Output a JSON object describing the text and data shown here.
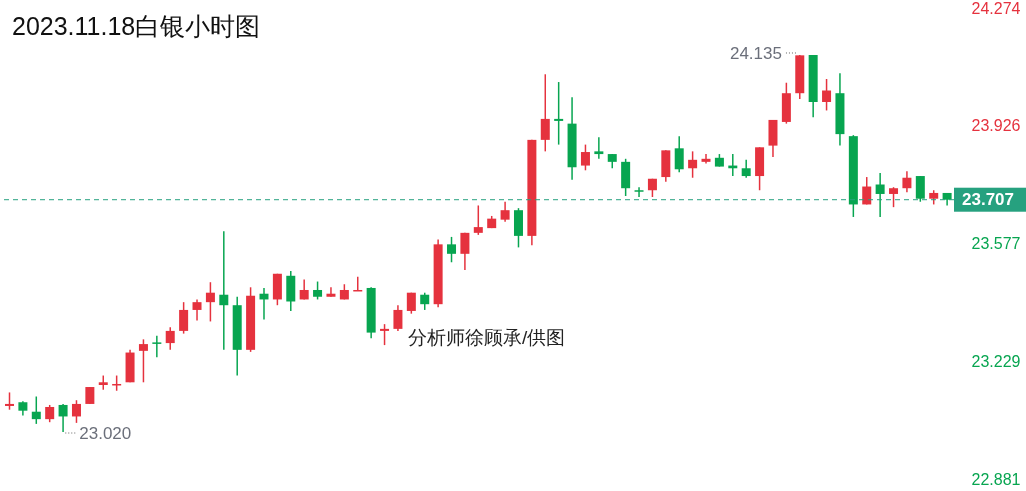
{
  "chart_data": {
    "type": "candlestick",
    "title": "2023.11.18白银小时图",
    "categories": [
      null,
      null,
      null,
      null,
      null,
      null,
      null,
      null,
      null,
      null,
      null,
      null,
      null,
      null,
      null,
      null,
      null,
      null,
      null,
      null,
      null,
      null,
      null,
      null,
      null,
      null,
      null,
      null,
      null,
      null,
      null,
      null,
      null,
      null,
      null,
      null,
      null,
      null,
      null,
      null,
      null,
      null,
      null,
      null,
      null,
      null,
      null,
      null,
      null,
      null,
      null,
      null,
      null,
      null,
      null,
      null,
      null,
      null,
      null,
      null,
      null,
      null,
      null,
      null,
      null,
      null,
      null,
      null,
      null,
      null,
      null
    ],
    "ohlc": [
      [
        23.097,
        23.137,
        23.086,
        23.103
      ],
      [
        23.108,
        23.111,
        23.069,
        23.083
      ],
      [
        23.08,
        23.125,
        23.044,
        23.058
      ],
      [
        23.058,
        23.1,
        23.049,
        23.094
      ],
      [
        23.1,
        23.103,
        23.02,
        23.066
      ],
      [
        23.066,
        23.114,
        23.047,
        23.103
      ],
      [
        23.103,
        23.153,
        23.103,
        23.153
      ],
      [
        23.159,
        23.187,
        23.145,
        23.167
      ],
      [
        23.159,
        23.187,
        23.142,
        23.162
      ],
      [
        23.167,
        23.263,
        23.167,
        23.255
      ],
      [
        23.26,
        23.294,
        23.167,
        23.28
      ],
      [
        23.285,
        23.305,
        23.241,
        23.283
      ],
      [
        23.283,
        23.33,
        23.263,
        23.319
      ],
      [
        23.319,
        23.404,
        23.311,
        23.381
      ],
      [
        23.381,
        23.412,
        23.35,
        23.404
      ],
      [
        23.404,
        23.463,
        23.347,
        23.432
      ],
      [
        23.426,
        23.614,
        23.263,
        23.395
      ],
      [
        23.395,
        23.42,
        23.187,
        23.263
      ],
      [
        23.263,
        23.448,
        23.257,
        23.423
      ],
      [
        23.429,
        23.446,
        23.353,
        23.412
      ],
      [
        23.412,
        23.488,
        23.395,
        23.488
      ],
      [
        23.482,
        23.496,
        23.378,
        23.406
      ],
      [
        23.412,
        23.471,
        23.412,
        23.44
      ],
      [
        23.44,
        23.465,
        23.412,
        23.42
      ],
      [
        23.42,
        23.448,
        23.42,
        23.429
      ],
      [
        23.412,
        23.457,
        23.412,
        23.44
      ],
      [
        23.437,
        23.479,
        23.437,
        23.44
      ],
      [
        23.446,
        23.448,
        23.297,
        23.314
      ],
      [
        23.319,
        23.339,
        23.277,
        23.325
      ],
      [
        23.325,
        23.395,
        23.319,
        23.381
      ],
      [
        23.378,
        23.432,
        23.37,
        23.432
      ],
      [
        23.426,
        23.432,
        23.381,
        23.398
      ],
      [
        23.398,
        23.589,
        23.389,
        23.575
      ],
      [
        23.575,
        23.597,
        23.522,
        23.547
      ],
      [
        23.547,
        23.609,
        23.499,
        23.609
      ],
      [
        23.609,
        23.69,
        23.603,
        23.626
      ],
      [
        23.623,
        23.659,
        23.623,
        23.651
      ],
      [
        23.648,
        23.701,
        23.642,
        23.676
      ],
      [
        23.676,
        23.682,
        23.566,
        23.6
      ],
      [
        23.6,
        23.884,
        23.572,
        23.884
      ],
      [
        23.884,
        24.078,
        23.85,
        23.946
      ],
      [
        23.946,
        24.055,
        23.87,
        23.94
      ],
      [
        23.932,
        24.01,
        23.766,
        23.803
      ],
      [
        23.808,
        23.87,
        23.794,
        23.848
      ],
      [
        23.85,
        23.892,
        23.828,
        23.842
      ],
      [
        23.842,
        23.842,
        23.8,
        23.819
      ],
      [
        23.819,
        23.828,
        23.718,
        23.741
      ],
      [
        23.735,
        23.744,
        23.715,
        23.732
      ],
      [
        23.735,
        23.769,
        23.715,
        23.769
      ],
      [
        23.774,
        23.853,
        23.76,
        23.853
      ],
      [
        23.859,
        23.895,
        23.788,
        23.797
      ],
      [
        23.8,
        23.85,
        23.772,
        23.825
      ],
      [
        23.819,
        23.842,
        23.814,
        23.828
      ],
      [
        23.831,
        23.842,
        23.805,
        23.805
      ],
      [
        23.808,
        23.842,
        23.777,
        23.8
      ],
      [
        23.8,
        23.825,
        23.772,
        23.777
      ],
      [
        23.777,
        23.862,
        23.735,
        23.862
      ],
      [
        23.867,
        23.943,
        23.833,
        23.943
      ],
      [
        23.937,
        24.053,
        23.932,
        24.022
      ],
      [
        24.022,
        24.135,
        24.005,
        24.134
      ],
      [
        24.135,
        24.135,
        23.951,
        23.996
      ],
      [
        23.996,
        24.064,
        23.971,
        24.03
      ],
      [
        24.022,
        24.081,
        23.867,
        23.901
      ],
      [
        23.895,
        23.898,
        23.656,
        23.693
      ],
      [
        23.693,
        23.774,
        23.693,
        23.746
      ],
      [
        23.752,
        23.786,
        23.656,
        23.724
      ],
      [
        23.724,
        23.744,
        23.685,
        23.741
      ],
      [
        23.741,
        23.791,
        23.729,
        23.772
      ],
      [
        23.777,
        23.777,
        23.701,
        23.71
      ],
      [
        23.71,
        23.735,
        23.693,
        23.727
      ],
      [
        23.727,
        23.727,
        23.69,
        23.707
      ]
    ],
    "colors": [
      "#e5323e",
      "#07a550",
      "#07a550",
      "#e5323e",
      "#07a550",
      "#e5323e",
      "#e5323e",
      "#e5323e",
      "#e5323e",
      "#e5323e",
      "#e5323e",
      "#07a550",
      "#e5323e",
      "#e5323e",
      "#e5323e",
      "#e5323e",
      "#07a550",
      "#07a550",
      "#e5323e",
      "#07a550",
      "#e5323e",
      "#07a550",
      "#e5323e",
      "#07a550",
      "#e5323e",
      "#e5323e",
      "#e5323e",
      "#07a550",
      "#e5323e",
      "#e5323e",
      "#e5323e",
      "#07a550",
      "#e5323e",
      "#07a550",
      "#e5323e",
      "#e5323e",
      "#e5323e",
      "#e5323e",
      "#07a550",
      "#e5323e",
      "#e5323e",
      "#07a550",
      "#07a550",
      "#e5323e",
      "#07a550",
      "#07a550",
      "#07a550",
      "#07a550",
      "#e5323e",
      "#e5323e",
      "#07a550",
      "#e5323e",
      "#e5323e",
      "#07a550",
      "#07a550",
      "#07a550",
      "#e5323e",
      "#e5323e",
      "#e5323e",
      "#e5323e",
      "#07a550",
      "#e5323e",
      "#07a550",
      "#07a550",
      "#e5323e",
      "#07a550",
      "#e5323e",
      "#e5323e",
      "#07a550",
      "#e5323e",
      "#07a550"
    ],
    "ylim": [
      22.881,
      24.274
    ],
    "yticks": [
      22.881,
      23.229,
      23.577,
      23.926,
      24.274
    ],
    "ref_lines": [
      {
        "axis": "y",
        "value": 23.707,
        "label": "23.707",
        "color": "#26a17f",
        "line_style": "dashed"
      }
    ],
    "annotations": [
      "24.135",
      "23.020",
      "分析师徐顾承/供图"
    ]
  }
}
